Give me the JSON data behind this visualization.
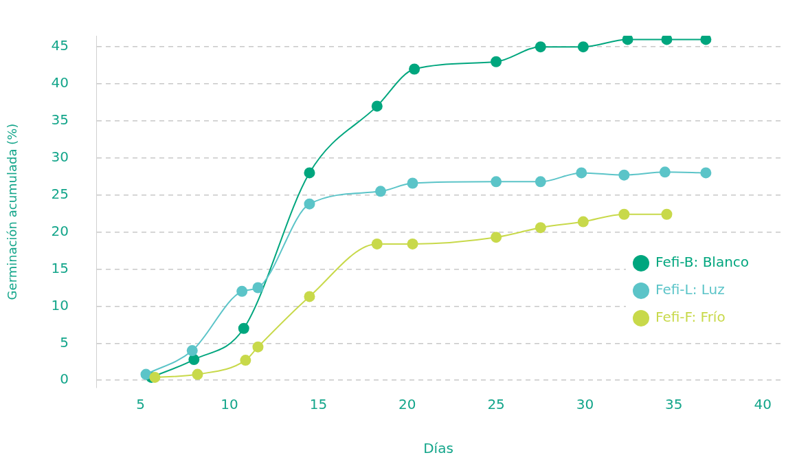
{
  "chart_data": {
    "type": "line",
    "xlabel": "Días",
    "ylabel": "Germinación acumulada (%)",
    "xlim": [
      2.5,
      41
    ],
    "xticks": [
      5,
      10,
      15,
      20,
      25,
      30,
      35,
      40
    ],
    "ylim": [
      -1,
      46.5
    ],
    "yticks": [
      0,
      5,
      10,
      15,
      20,
      25,
      30,
      35,
      40,
      45
    ],
    "grid": "y",
    "legend": "right",
    "marker": "circle",
    "line_style": "solid",
    "series": [
      {
        "name": "Fefi-B: Blanco",
        "color": "#00a67e",
        "x": [
          5.6,
          8.0,
          10.8,
          14.5,
          18.3,
          20.4,
          25,
          27.5,
          29.9,
          32.4,
          34.6,
          36.8
        ],
        "values": [
          0.4,
          2.8,
          7,
          28,
          37,
          42,
          43,
          45,
          45,
          46,
          46,
          46
        ]
      },
      {
        "name": "Fefi-L: Luz",
        "color": "#5bc4c8",
        "x": [
          5.3,
          7.9,
          10.7,
          11.6,
          14.5,
          18.5,
          20.3,
          25,
          27.5,
          29.8,
          32.2,
          34.5,
          36.8
        ],
        "values": [
          0.8,
          4,
          12,
          12.5,
          23.8,
          25.5,
          26.6,
          26.8,
          26.8,
          28,
          27.7,
          28.1,
          28
        ]
      },
      {
        "name": "Fefi-F: Frío",
        "color": "#c8d94a",
        "x": [
          5.8,
          8.2,
          10.9,
          11.6,
          14.5,
          18.3,
          20.3,
          25,
          27.5,
          29.9,
          32.2,
          34.6
        ],
        "values": [
          0.4,
          0.8,
          2.7,
          4.5,
          11.3,
          18.4,
          18.4,
          19.3,
          20.6,
          21.4,
          22.4,
          22.4
        ]
      }
    ]
  }
}
